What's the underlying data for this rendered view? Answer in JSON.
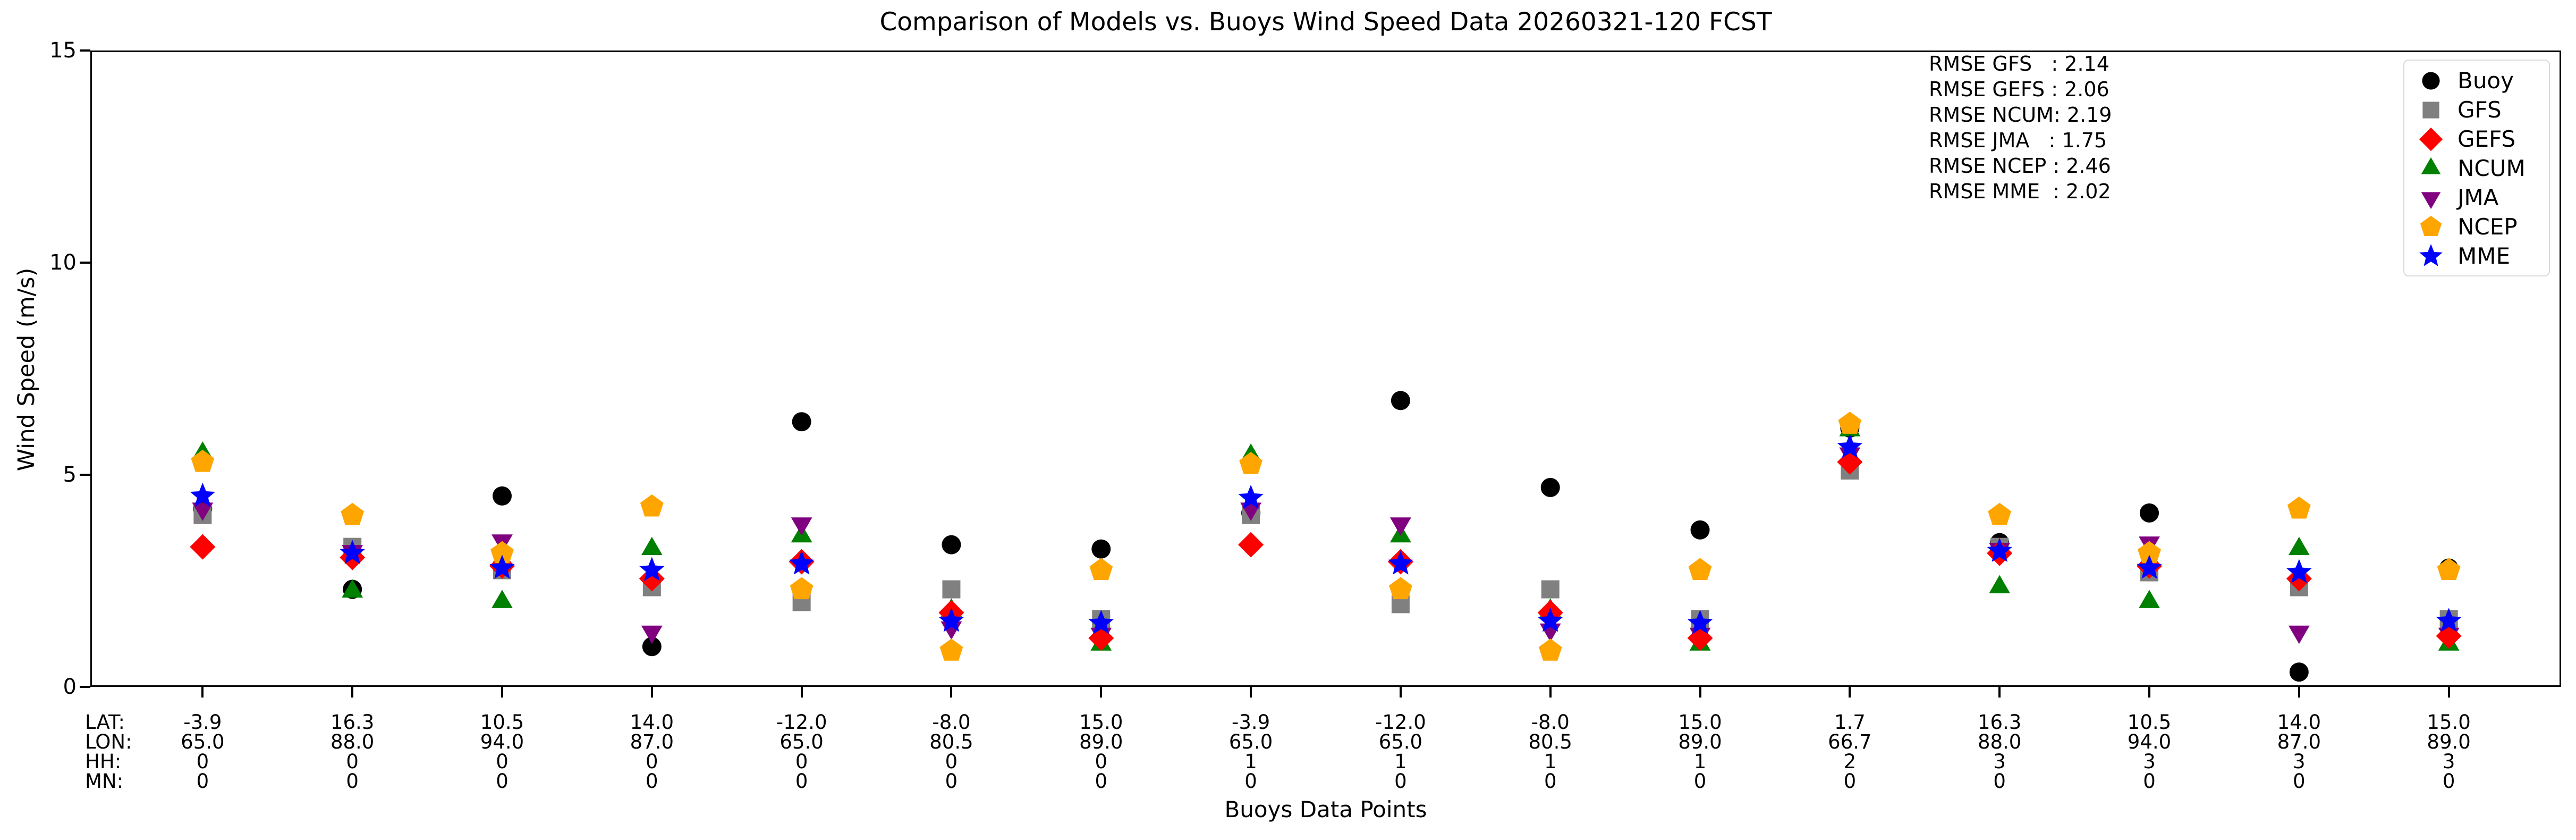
{
  "title": "Comparison of Models vs. Buoys Wind Speed Data 20260321-120 FCST",
  "chart_data": {
    "type": "scatter",
    "title": "Comparison of Models vs. Buoys Wind Speed Data 20260321-120 FCST",
    "xlabel": "Buoys Data Points",
    "ylabel": "Wind Speed (m/s)",
    "ylim": [
      0,
      15
    ],
    "yticks": [
      0,
      5,
      10,
      15
    ],
    "grid": false,
    "legend_position": "upper right",
    "x_row_headers": [
      "LAT:",
      "LON:",
      "HH:",
      "MN:"
    ],
    "rmse_lines": [
      "RMSE GFS   : 2.14",
      "RMSE GEFS : 2.06",
      "RMSE NCUM: 2.19",
      "RMSE JMA   : 1.75",
      "RMSE NCEP : 2.46",
      "RMSE MME  : 2.02"
    ],
    "legend": [
      {
        "name": "Buoy",
        "marker": "circle",
        "color": "#000000"
      },
      {
        "name": "GFS",
        "marker": "square",
        "color": "#808080"
      },
      {
        "name": "GEFS",
        "marker": "diamond",
        "color": "#ff0000"
      },
      {
        "name": "NCUM",
        "marker": "triangle-up",
        "color": "#008000"
      },
      {
        "name": "JMA",
        "marker": "triangle-down",
        "color": "#800080"
      },
      {
        "name": "NCEP",
        "marker": "pentagon",
        "color": "#ffa500"
      },
      {
        "name": "MME",
        "marker": "star",
        "color": "#0000ff"
      }
    ],
    "draw_order": [
      "Buoy",
      "GFS",
      "NCUM",
      "JMA",
      "GEFS",
      "NCEP",
      "MME"
    ],
    "points": [
      {
        "lat": "-3.9",
        "lon": "65.0",
        "hh": "0",
        "mn": "0",
        "values": {
          "Buoy": 4.2,
          "GFS": 4.05,
          "GEFS": 3.3,
          "NCUM": 5.5,
          "JMA": 4.2,
          "NCEP": 5.3,
          "MME": 4.5
        }
      },
      {
        "lat": "16.3",
        "lon": "88.0",
        "hh": "0",
        "mn": "0",
        "values": {
          "Buoy": 2.3,
          "GFS": 3.3,
          "GEFS": 3.05,
          "NCUM": 2.25,
          "JMA": 3.2,
          "NCEP": 4.05,
          "MME": 3.15
        }
      },
      {
        "lat": "10.5",
        "lon": "94.0",
        "hh": "0",
        "mn": "0",
        "values": {
          "Buoy": 4.5,
          "GFS": 2.75,
          "GEFS": 2.85,
          "NCUM": 2.0,
          "JMA": 3.45,
          "NCEP": 3.15,
          "MME": 2.8
        }
      },
      {
        "lat": "14.0",
        "lon": "87.0",
        "hh": "0",
        "mn": "0",
        "values": {
          "Buoy": 0.95,
          "GFS": 2.35,
          "GEFS": 2.55,
          "NCUM": 3.25,
          "JMA": 1.3,
          "NCEP": 4.25,
          "MME": 2.75
        }
      },
      {
        "lat": "-12.0",
        "lon": "65.0",
        "hh": "0",
        "mn": "0",
        "values": {
          "Buoy": 6.25,
          "GFS": 2.0,
          "GEFS": 2.95,
          "NCUM": 3.55,
          "JMA": 3.85,
          "NCEP": 2.3,
          "MME": 2.9
        }
      },
      {
        "lat": "-8.0",
        "lon": "80.5",
        "hh": "0",
        "mn": "0",
        "values": {
          "Buoy": 3.35,
          "GFS": 2.3,
          "GEFS": 1.75,
          "NCUM": 1.8,
          "JMA": 1.4,
          "NCEP": 0.85,
          "MME": 1.55
        }
      },
      {
        "lat": "15.0",
        "lon": "89.0",
        "hh": "0",
        "mn": "0",
        "values": {
          "Buoy": 3.25,
          "GFS": 1.6,
          "GEFS": 1.15,
          "NCUM": 1.0,
          "JMA": 1.25,
          "NCEP": 2.75,
          "MME": 1.5
        }
      },
      {
        "lat": "-3.9",
        "lon": "65.0",
        "hh": "1",
        "mn": "0",
        "values": {
          "Buoy": 4.1,
          "GFS": 4.05,
          "GEFS": 3.35,
          "NCUM": 5.45,
          "JMA": 4.2,
          "NCEP": 5.25,
          "MME": 4.45
        }
      },
      {
        "lat": "-12.0",
        "lon": "65.0",
        "hh": "1",
        "mn": "0",
        "values": {
          "Buoy": 6.75,
          "GFS": 1.95,
          "GEFS": 2.95,
          "NCUM": 3.55,
          "JMA": 3.85,
          "NCEP": 2.3,
          "MME": 2.9
        }
      },
      {
        "lat": "-8.0",
        "lon": "80.5",
        "hh": "1",
        "mn": "0",
        "values": {
          "Buoy": 4.7,
          "GFS": 2.3,
          "GEFS": 1.75,
          "NCUM": 1.8,
          "JMA": 1.35,
          "NCEP": 0.85,
          "MME": 1.55
        }
      },
      {
        "lat": "15.0",
        "lon": "89.0",
        "hh": "1",
        "mn": "0",
        "values": {
          "Buoy": 3.7,
          "GFS": 1.6,
          "GEFS": 1.15,
          "NCUM": 1.0,
          "JMA": 1.25,
          "NCEP": 2.75,
          "MME": 1.5
        }
      },
      {
        "lat": "1.7",
        "lon": "66.7",
        "hh": "2",
        "mn": "0",
        "values": {
          "Buoy": 6.1,
          "GFS": 5.1,
          "GEFS": 5.3,
          "NCUM": 6.05,
          "JMA": 5.5,
          "NCEP": 6.2,
          "MME": 5.65
        }
      },
      {
        "lat": "16.3",
        "lon": "88.0",
        "hh": "3",
        "mn": "0",
        "values": {
          "Buoy": 3.4,
          "GFS": 3.3,
          "GEFS": 3.15,
          "NCUM": 2.35,
          "JMA": 3.25,
          "NCEP": 4.05,
          "MME": 3.2
        }
      },
      {
        "lat": "10.5",
        "lon": "94.0",
        "hh": "3",
        "mn": "0",
        "values": {
          "Buoy": 4.1,
          "GFS": 2.7,
          "GEFS": 2.85,
          "NCUM": 2.0,
          "JMA": 3.4,
          "NCEP": 3.15,
          "MME": 2.8
        }
      },
      {
        "lat": "14.0",
        "lon": "87.0",
        "hh": "3",
        "mn": "0",
        "values": {
          "Buoy": 0.35,
          "GFS": 2.35,
          "GEFS": 2.55,
          "NCUM": 3.25,
          "JMA": 1.3,
          "NCEP": 4.2,
          "MME": 2.7
        }
      },
      {
        "lat": "15.0",
        "lon": "89.0",
        "hh": "3",
        "mn": "0",
        "values": {
          "Buoy": 2.8,
          "GFS": 1.6,
          "GEFS": 1.2,
          "NCUM": 1.0,
          "JMA": 1.25,
          "NCEP": 2.75,
          "MME": 1.55
        }
      }
    ]
  }
}
